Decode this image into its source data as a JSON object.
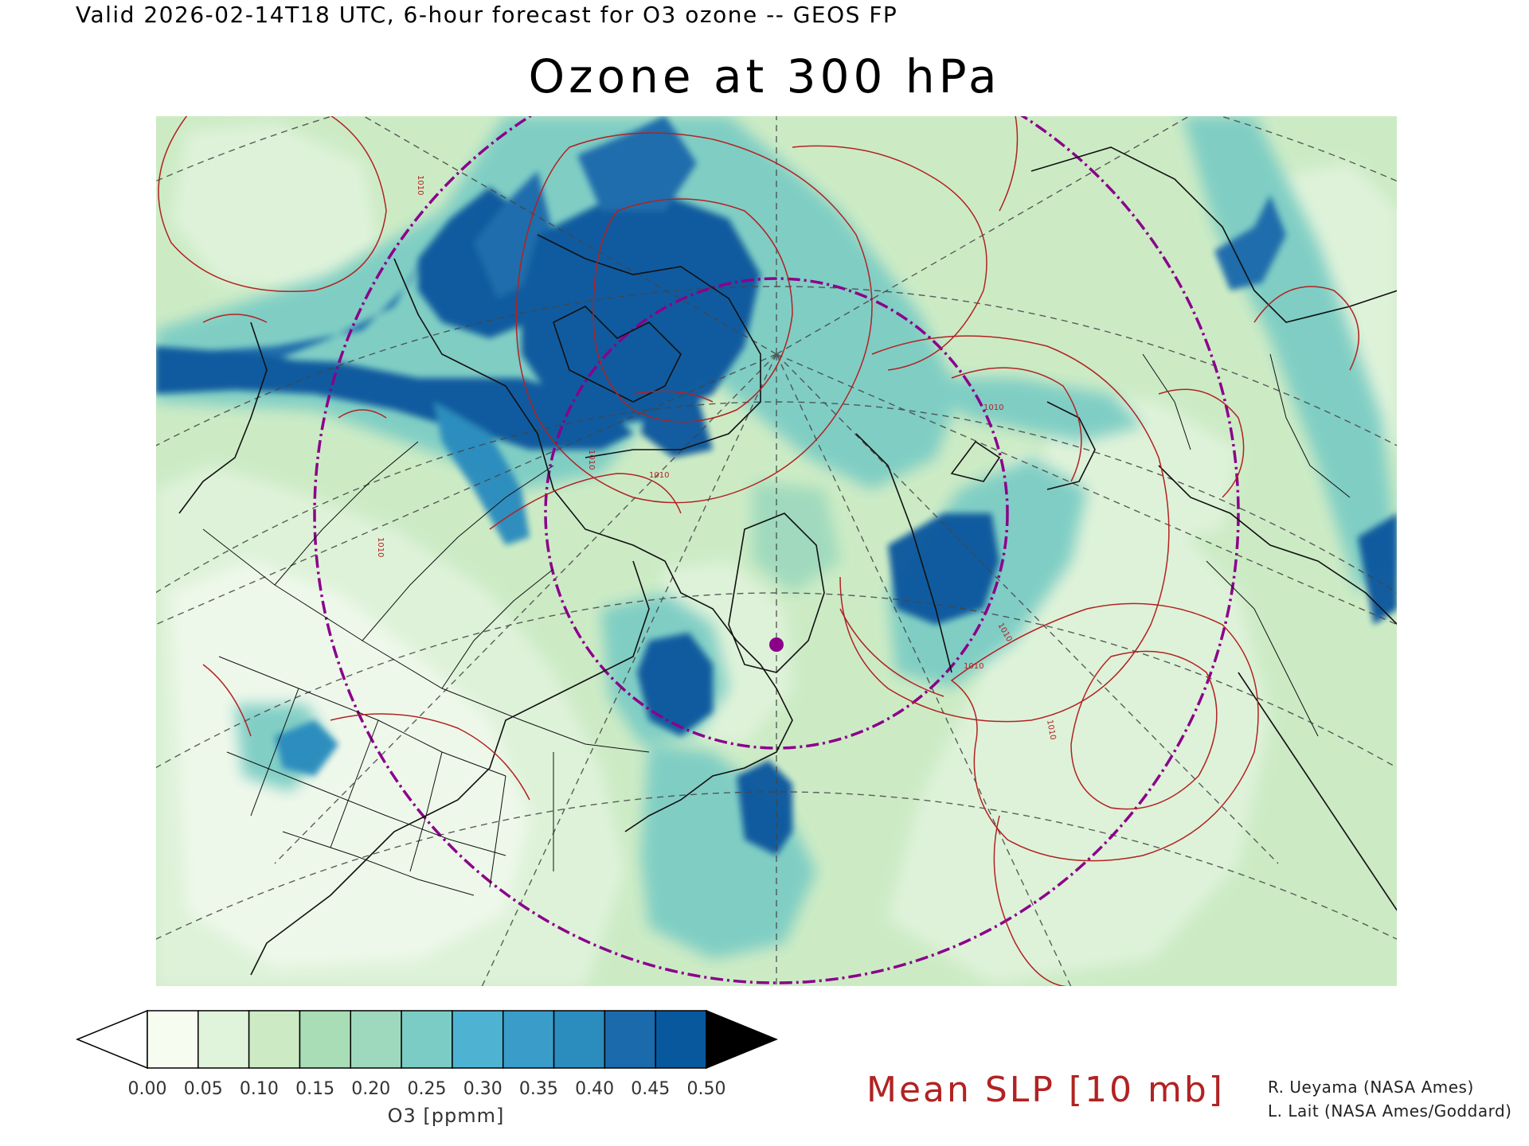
{
  "header": "Valid 2026-02-14T18 UTC, 6-hour forecast for O3 ozone -- GEOS FP",
  "title": "Ozone at 300 hPa",
  "colorbar": {
    "ticks": [
      "0.00",
      "0.05",
      "0.10",
      "0.15",
      "0.20",
      "0.25",
      "0.30",
      "0.35",
      "0.40",
      "0.45",
      "0.50"
    ],
    "colors": [
      "#f7fcf0",
      "#e0f3db",
      "#ccebc5",
      "#a8ddb5",
      "#9ed9bd",
      "#7bccc4",
      "#4eb3d3",
      "#3a9cc9",
      "#2b8cbe",
      "#1a6aac",
      "#08589e"
    ],
    "under_color": "#ffffff",
    "over_color": "#000000",
    "unit_label": "O3 [ppmm]"
  },
  "contour_legend": "Mean SLP [10 mb]",
  "contour_label": "1010",
  "credits": [
    "R. Ueyama (NASA Ames)",
    "L. Lait (NASA Ames/Goddard)"
  ],
  "marker_color": "#8b008b"
}
